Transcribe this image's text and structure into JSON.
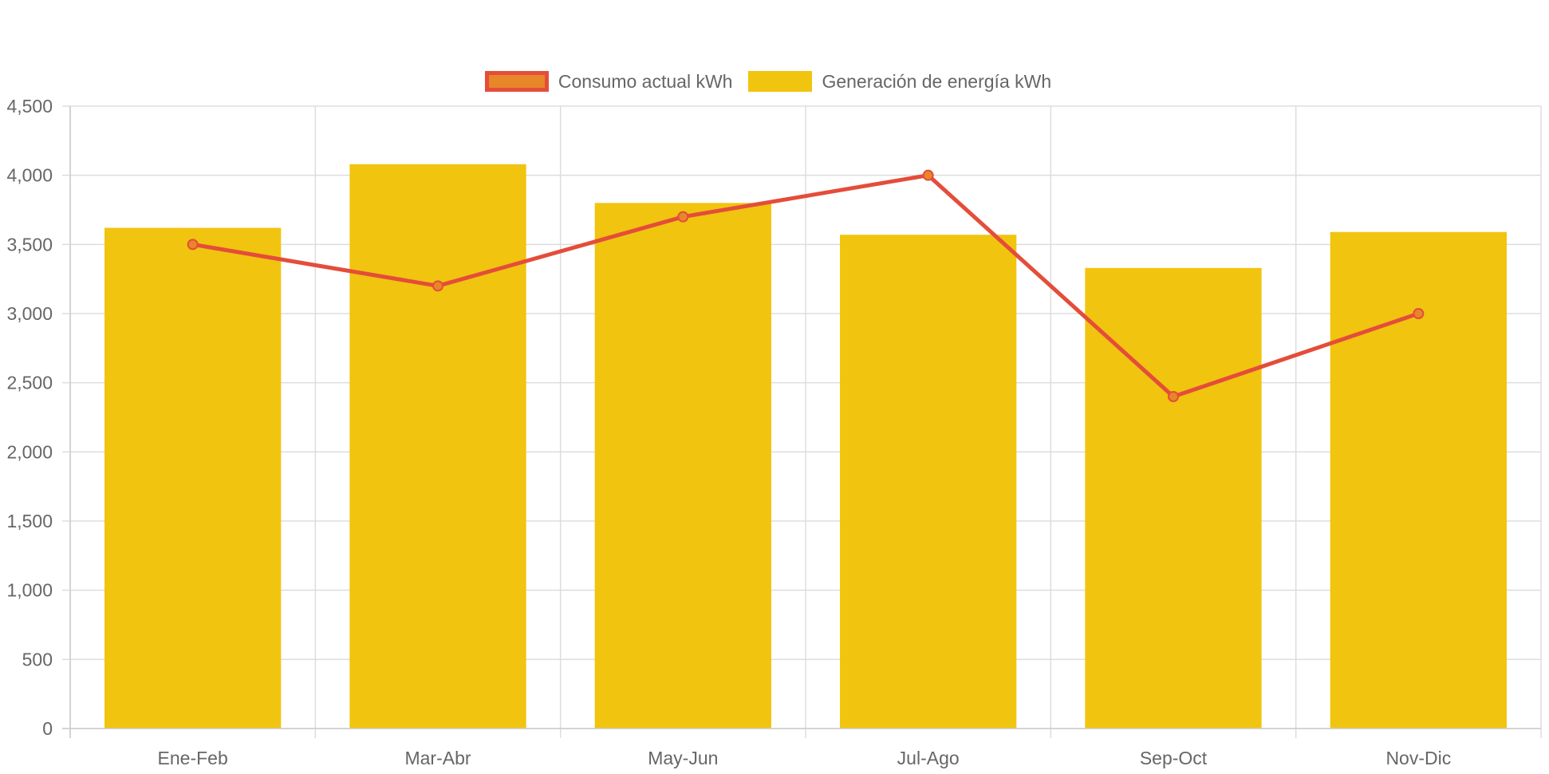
{
  "legend": {
    "items": [
      {
        "label": "Consumo actual kWh",
        "swatch_fill": "#e8862a",
        "swatch_border": "#e44d3a"
      },
      {
        "label": "Generación de energía kWh",
        "swatch_fill": "#f1c40f",
        "swatch_border": "#f1c40f"
      }
    ]
  },
  "chart_data": {
    "type": "bar",
    "categories": [
      "Ene-Feb",
      "Mar-Abr",
      "May-Jun",
      "Jul-Ago",
      "Sep-Oct",
      "Nov-Dic"
    ],
    "series": [
      {
        "name": "Generación de energía kWh",
        "type": "bar",
        "color": "#f1c40f",
        "values": [
          3620,
          4080,
          3800,
          3570,
          3330,
          3590
        ]
      },
      {
        "name": "Consumo actual kWh",
        "type": "line",
        "color": "#e44d3a",
        "point_color": "#e8862a",
        "values": [
          3500,
          3200,
          3700,
          4000,
          2400,
          3000
        ]
      }
    ],
    "ylim": [
      0,
      4500
    ],
    "yticks": [
      0,
      500,
      1000,
      1500,
      2000,
      2500,
      3000,
      3500,
      4000,
      4500
    ],
    "ytick_labels": [
      "0",
      "500",
      "1,000",
      "1,500",
      "2,000",
      "2,500",
      "3,000",
      "3,500",
      "4,000",
      "4,500"
    ],
    "grid": true,
    "legend_position": "top",
    "title": "",
    "xlabel": "",
    "ylabel": ""
  }
}
